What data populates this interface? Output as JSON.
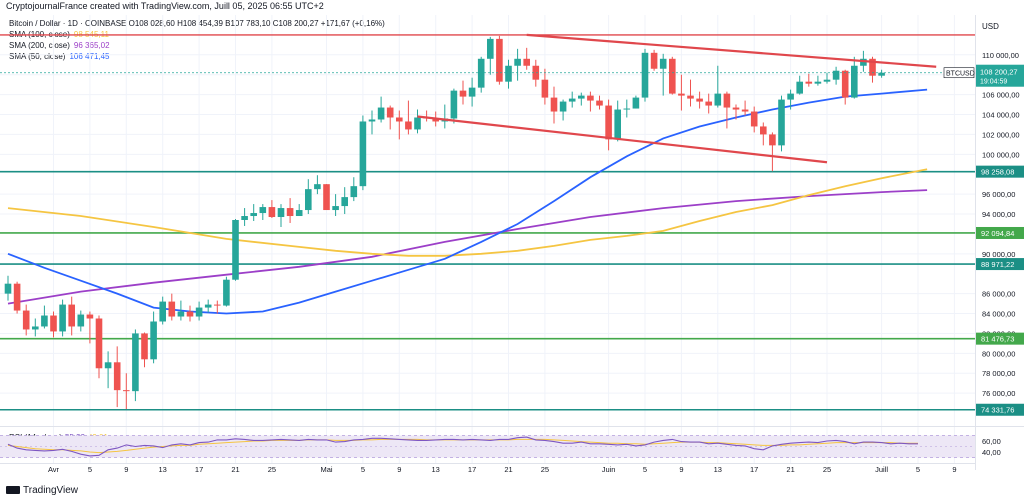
{
  "header": {
    "credit": "CryptojournalFrance created with TradingView.com, Juill 05, 2025 06:55 UTC+2",
    "symbol_line": "Bitcoin / Dollar · 1D · COINBASE",
    "ohlc": "O108 028,60  H108 454,39  B107 783,10  C108 200,27  +171,67 (+0,16%)"
  },
  "legend": [
    {
      "label": "SMA (100, close)",
      "value": "98 545,11",
      "color": "#f5c542"
    },
    {
      "label": "SMA (200, close)",
      "value": "96 365,02",
      "color": "#9c3fc8"
    },
    {
      "label": "SMA (50, close)",
      "value": "106 471,45",
      "color": "#2962ff"
    }
  ],
  "price_axis": {
    "currency": "USD",
    "ticks": [
      "110 000,00",
      "108 000,00",
      "106 000,00",
      "104 000,00",
      "102 000,00",
      "100 000,00",
      "96 000,00",
      "94 000,00",
      "90 000,00",
      "86 000,00",
      "84 000,00",
      "82 000,00",
      "80 000,00",
      "78 000,00",
      "76 000,00"
    ]
  },
  "levels": [
    {
      "label": "98 258,08",
      "value": 98258.08,
      "color": "#1b8f85"
    },
    {
      "label": "92 094,84",
      "value": 92094.84,
      "color": "#43a84b"
    },
    {
      "label": "88 971,22",
      "value": 88971.22,
      "color": "#1b8f85"
    },
    {
      "label": "81 476,73",
      "value": 81476.73,
      "color": "#43a84b"
    },
    {
      "label": "74 331,76",
      "value": 74331.76,
      "color": "#1b8f85"
    }
  ],
  "top_line_value": 112000,
  "price_badge": {
    "symbol": "BTCUSD",
    "price": "108 200,27",
    "timer": "19:04:59",
    "value": 108200.27,
    "color": "#26a69a"
  },
  "time_axis": {
    "labels": [
      {
        "t": "Avr",
        "i": 5
      },
      {
        "t": "5",
        "i": 9
      },
      {
        "t": "9",
        "i": 13
      },
      {
        "t": "13",
        "i": 17
      },
      {
        "t": "17",
        "i": 21
      },
      {
        "t": "21",
        "i": 25
      },
      {
        "t": "25",
        "i": 29
      },
      {
        "t": "Mai",
        "i": 35
      },
      {
        "t": "5",
        "i": 39
      },
      {
        "t": "9",
        "i": 43
      },
      {
        "t": "13",
        "i": 47
      },
      {
        "t": "17",
        "i": 51
      },
      {
        "t": "21",
        "i": 55
      },
      {
        "t": "25",
        "i": 59
      },
      {
        "t": "Juin",
        "i": 66
      },
      {
        "t": "5",
        "i": 70
      },
      {
        "t": "9",
        "i": 74
      },
      {
        "t": "13",
        "i": 78
      },
      {
        "t": "17",
        "i": 82
      },
      {
        "t": "21",
        "i": 86
      },
      {
        "t": "25",
        "i": 90
      },
      {
        "t": "Juill",
        "i": 96
      },
      {
        "t": "5",
        "i": 100
      },
      {
        "t": "9",
        "i": 104
      }
    ]
  },
  "trendlines": [
    {
      "name": "upper",
      "from": {
        "i": 57,
        "v": 112000
      },
      "to": {
        "i": 102,
        "v": 108800
      },
      "color": "#e0474c"
    },
    {
      "name": "lower",
      "from": {
        "i": 45,
        "v": 103800
      },
      "to": {
        "i": 90,
        "v": 99200
      },
      "color": "#e0474c"
    }
  ],
  "rsi": {
    "label": "RSI (14, close)",
    "value": "55,22",
    "value2": "49,01",
    "ticks": [
      "60,00",
      "40,00"
    ],
    "band": [
      30,
      70
    ],
    "values": [
      54,
      47,
      44,
      43,
      42,
      43,
      45,
      41,
      36,
      33,
      34,
      44,
      47,
      53,
      50,
      52,
      51,
      48,
      53,
      55,
      53,
      57,
      58,
      62,
      62,
      64,
      63,
      61,
      61,
      62,
      63,
      62,
      61,
      63,
      62,
      62,
      58,
      59,
      62,
      63,
      65,
      65,
      64,
      63,
      62,
      61,
      61,
      62,
      63,
      63,
      62,
      63,
      62,
      61,
      63,
      63,
      66,
      67,
      62,
      61,
      59,
      56,
      56,
      58,
      55,
      55,
      54,
      53,
      54,
      51,
      53,
      58,
      61,
      63,
      59,
      58,
      58,
      55,
      56,
      54,
      52,
      51,
      46,
      44,
      51,
      54,
      56,
      57,
      58,
      57,
      60,
      61,
      59,
      55,
      58,
      58,
      57,
      55,
      56,
      55,
      55
    ],
    "ma": [
      52,
      50,
      48,
      46,
      45,
      44,
      44,
      43,
      42,
      40,
      39,
      40,
      41,
      43,
      45,
      47,
      49,
      50,
      51,
      52,
      52,
      54,
      55,
      56,
      57,
      58,
      59,
      60,
      60,
      61,
      61,
      61,
      61,
      62,
      62,
      62,
      61,
      61,
      61,
      62,
      62,
      63,
      63,
      63,
      63,
      63,
      62,
      62,
      62,
      62,
      62,
      62,
      62,
      62,
      62,
      62,
      63,
      63,
      63,
      63,
      62,
      61,
      60,
      59,
      58,
      57,
      56,
      56,
      55,
      55,
      54,
      55,
      56,
      57,
      58,
      58,
      58,
      57,
      57,
      56,
      55,
      54,
      53,
      52,
      52,
      52,
      53,
      53,
      54,
      55,
      56,
      57,
      57,
      57,
      57,
      57,
      57,
      57,
      56,
      56,
      56
    ],
    "colors": {
      "line": "#7e57c2",
      "ma": "#f5c542",
      "band": "#ede7f6"
    }
  },
  "chart_data": {
    "type": "candlestick",
    "title": "Bitcoin / Dollar · 1D · COINBASE",
    "ylabel": "USD",
    "ylim": [
      73000,
      114000
    ],
    "up_color": "#26a69a",
    "down_color": "#ef5350",
    "candles": [
      [
        86000,
        87800,
        85300,
        87000
      ],
      [
        87000,
        87200,
        84000,
        84300
      ],
      [
        84300,
        84900,
        81800,
        82400
      ],
      [
        82400,
        83500,
        81700,
        82700
      ],
      [
        82700,
        84800,
        82500,
        83800
      ],
      [
        83800,
        84200,
        81600,
        82200
      ],
      [
        82200,
        85400,
        81700,
        84900
      ],
      [
        84900,
        85700,
        81800,
        82700
      ],
      [
        82700,
        84300,
        82200,
        83900
      ],
      [
        83900,
        84200,
        81000,
        83500
      ],
      [
        83500,
        83800,
        77500,
        78500
      ],
      [
        78500,
        80200,
        76500,
        79100
      ],
      [
        79100,
        80700,
        74600,
        76300
      ],
      [
        76300,
        78000,
        74400,
        76200
      ],
      [
        76200,
        82400,
        75200,
        82000
      ],
      [
        82000,
        82100,
        78600,
        79400
      ],
      [
        79400,
        84200,
        79000,
        83200
      ],
      [
        83200,
        85700,
        82900,
        85200
      ],
      [
        85200,
        86000,
        83300,
        83700
      ],
      [
        83700,
        85300,
        83300,
        84200
      ],
      [
        84200,
        84800,
        83200,
        83700
      ],
      [
        83700,
        85200,
        83300,
        84600
      ],
      [
        84600,
        85400,
        84100,
        84900
      ],
      [
        84900,
        85300,
        84000,
        84800
      ],
      [
        84800,
        87700,
        84700,
        87400
      ],
      [
        87400,
        93500,
        87300,
        93400
      ],
      [
        93400,
        94600,
        92800,
        93800
      ],
      [
        93800,
        95000,
        93300,
        94100
      ],
      [
        94100,
        95000,
        93400,
        94700
      ],
      [
        94700,
        95400,
        93600,
        93700
      ],
      [
        93700,
        95000,
        92700,
        94600
      ],
      [
        94600,
        95600,
        93100,
        93800
      ],
      [
        93800,
        95000,
        93800,
        94400
      ],
      [
        94400,
        97500,
        94000,
        96500
      ],
      [
        96500,
        97900,
        96000,
        97000
      ],
      [
        97000,
        97000,
        94600,
        94400
      ],
      [
        94400,
        96000,
        93800,
        94800
      ],
      [
        94800,
        96700,
        94000,
        95700
      ],
      [
        95700,
        97700,
        95300,
        96800
      ],
      [
        96800,
        103900,
        96400,
        103300
      ],
      [
        103300,
        104400,
        102000,
        103500
      ],
      [
        103500,
        105800,
        103200,
        104700
      ],
      [
        104700,
        104900,
        102500,
        103700
      ],
      [
        103700,
        104400,
        101500,
        103300
      ],
      [
        103300,
        105400,
        102000,
        102500
      ],
      [
        102500,
        104500,
        102100,
        103700
      ],
      [
        103700,
        104400,
        103300,
        103600
      ],
      [
        103600,
        104300,
        102800,
        103300
      ],
      [
        103300,
        105000,
        102600,
        103600
      ],
      [
        103600,
        106600,
        103100,
        106400
      ],
      [
        106400,
        107400,
        105000,
        105800
      ],
      [
        105800,
        107700,
        104800,
        106700
      ],
      [
        106700,
        109800,
        106200,
        109600
      ],
      [
        109600,
        111800,
        108000,
        111600
      ],
      [
        111600,
        111900,
        107000,
        107300
      ],
      [
        107300,
        109500,
        106600,
        108900
      ],
      [
        108900,
        110600,
        107400,
        109600
      ],
      [
        109600,
        110700,
        108500,
        108900
      ],
      [
        108900,
        109500,
        106800,
        107500
      ],
      [
        107500,
        108600,
        105000,
        105700
      ],
      [
        105700,
        106800,
        103100,
        104300
      ],
      [
        104300,
        105500,
        103400,
        105300
      ],
      [
        105300,
        106300,
        104700,
        105600
      ],
      [
        105600,
        106200,
        104900,
        105900
      ],
      [
        105900,
        106300,
        104300,
        105400
      ],
      [
        105400,
        105900,
        104500,
        104900
      ],
      [
        104900,
        105500,
        100400,
        101500
      ],
      [
        101500,
        105400,
        101300,
        104500
      ],
      [
        104500,
        105500,
        103700,
        104600
      ],
      [
        104600,
        105900,
        104600,
        105700
      ],
      [
        105700,
        110600,
        105300,
        110200
      ],
      [
        110200,
        110500,
        108400,
        108600
      ],
      [
        108600,
        110100,
        105900,
        109600
      ],
      [
        109600,
        109800,
        106000,
        106100
      ],
      [
        106100,
        108000,
        104400,
        105900
      ],
      [
        105900,
        107500,
        104800,
        105600
      ],
      [
        105600,
        106300,
        104600,
        105300
      ],
      [
        105300,
        106100,
        104100,
        104900
      ],
      [
        104900,
        108900,
        104700,
        106100
      ],
      [
        106100,
        106300,
        102600,
        104700
      ],
      [
        104700,
        105000,
        103500,
        104500
      ],
      [
        104500,
        105400,
        103900,
        104300
      ],
      [
        104300,
        104800,
        102200,
        102800
      ],
      [
        102800,
        103200,
        100900,
        102000
      ],
      [
        102000,
        102200,
        98300,
        100900
      ],
      [
        100900,
        105900,
        100300,
        105500
      ],
      [
        105500,
        106500,
        104500,
        106100
      ],
      [
        106100,
        107900,
        106000,
        107300
      ],
      [
        107300,
        108100,
        106800,
        107100
      ],
      [
        107100,
        107900,
        106900,
        107300
      ],
      [
        107300,
        108200,
        107100,
        107500
      ],
      [
        107500,
        108800,
        107000,
        108400
      ],
      [
        108400,
        108500,
        105000,
        105700
      ],
      [
        105700,
        109800,
        105600,
        108900
      ],
      [
        108900,
        110400,
        108300,
        109600
      ],
      [
        109600,
        109800,
        107200,
        107900
      ],
      [
        107900,
        108500,
        107700,
        108200
      ]
    ],
    "sma50": [
      {
        "i": 0,
        "v": 90000
      },
      {
        "i": 4,
        "v": 88600
      },
      {
        "i": 8,
        "v": 87300
      },
      {
        "i": 12,
        "v": 86000
      },
      {
        "i": 16,
        "v": 84600
      },
      {
        "i": 20,
        "v": 84200
      },
      {
        "i": 24,
        "v": 84000
      },
      {
        "i": 28,
        "v": 84200
      },
      {
        "i": 32,
        "v": 85100
      },
      {
        "i": 36,
        "v": 86200
      },
      {
        "i": 40,
        "v": 87300
      },
      {
        "i": 44,
        "v": 88400
      },
      {
        "i": 48,
        "v": 89500
      },
      {
        "i": 52,
        "v": 91200
      },
      {
        "i": 56,
        "v": 93000
      },
      {
        "i": 60,
        "v": 95300
      },
      {
        "i": 64,
        "v": 97700
      },
      {
        "i": 68,
        "v": 99800
      },
      {
        "i": 72,
        "v": 101600
      },
      {
        "i": 76,
        "v": 102800
      },
      {
        "i": 80,
        "v": 103700
      },
      {
        "i": 84,
        "v": 104500
      },
      {
        "i": 88,
        "v": 105200
      },
      {
        "i": 92,
        "v": 105800
      },
      {
        "i": 96,
        "v": 106100
      },
      {
        "i": 101,
        "v": 106500
      }
    ],
    "sma100": [
      {
        "i": 0,
        "v": 94600
      },
      {
        "i": 8,
        "v": 93800
      },
      {
        "i": 16,
        "v": 92700
      },
      {
        "i": 24,
        "v": 91500
      },
      {
        "i": 32,
        "v": 90700
      },
      {
        "i": 36,
        "v": 90300
      },
      {
        "i": 40,
        "v": 90000
      },
      {
        "i": 44,
        "v": 89800
      },
      {
        "i": 48,
        "v": 89800
      },
      {
        "i": 52,
        "v": 90000
      },
      {
        "i": 56,
        "v": 90300
      },
      {
        "i": 60,
        "v": 90800
      },
      {
        "i": 64,
        "v": 91400
      },
      {
        "i": 68,
        "v": 91800
      },
      {
        "i": 72,
        "v": 92300
      },
      {
        "i": 76,
        "v": 93300
      },
      {
        "i": 80,
        "v": 94200
      },
      {
        "i": 84,
        "v": 94900
      },
      {
        "i": 88,
        "v": 95900
      },
      {
        "i": 92,
        "v": 96800
      },
      {
        "i": 96,
        "v": 97600
      },
      {
        "i": 101,
        "v": 98500
      }
    ],
    "sma200": [
      {
        "i": 0,
        "v": 85000
      },
      {
        "i": 8,
        "v": 86200
      },
      {
        "i": 16,
        "v": 87100
      },
      {
        "i": 24,
        "v": 87900
      },
      {
        "i": 32,
        "v": 88700
      },
      {
        "i": 40,
        "v": 89700
      },
      {
        "i": 48,
        "v": 91200
      },
      {
        "i": 56,
        "v": 92500
      },
      {
        "i": 64,
        "v": 93700
      },
      {
        "i": 72,
        "v": 94600
      },
      {
        "i": 80,
        "v": 95300
      },
      {
        "i": 88,
        "v": 95800
      },
      {
        "i": 96,
        "v": 96200
      },
      {
        "i": 101,
        "v": 96400
      }
    ]
  }
}
